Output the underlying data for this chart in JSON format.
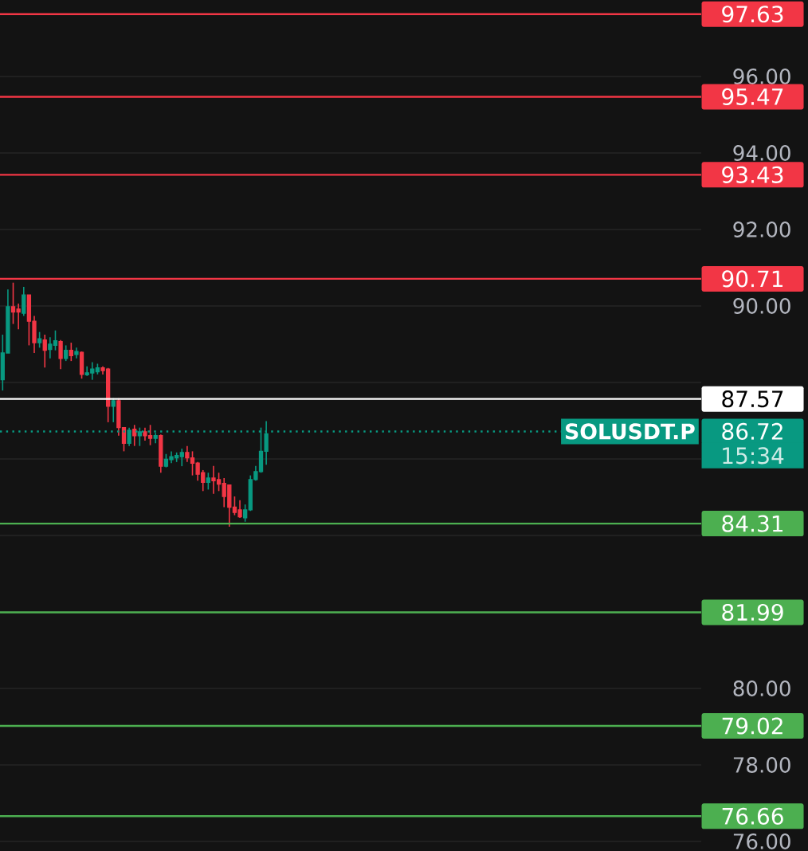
{
  "chart_data": {
    "type": "candlestick",
    "categories": [
      null,
      null,
      null,
      null,
      null,
      null,
      null,
      null,
      null,
      null,
      null,
      null,
      null,
      null,
      null,
      null,
      null,
      null,
      null,
      null,
      null,
      null,
      null,
      null,
      null,
      null,
      null,
      null,
      null,
      null,
      null,
      null,
      null,
      null,
      null,
      null,
      null,
      null,
      null,
      null,
      null,
      null,
      null,
      null,
      null,
      null,
      null,
      null,
      null,
      null,
      null,
      null,
      null,
      null,
      null,
      null,
      null,
      null,
      null,
      null,
      null,
      null,
      null,
      null,
      null,
      null,
      null,
      null,
      null,
      null,
      null,
      null,
      null,
      null,
      null,
      null,
      null,
      null,
      null,
      null,
      null,
      null,
      null,
      null,
      null,
      null,
      null,
      null,
      null,
      null,
      null,
      null,
      null,
      null,
      null,
      null,
      null,
      null,
      null,
      null,
      null,
      null,
      null,
      null,
      null,
      null,
      null,
      null,
      null,
      null,
      null,
      null,
      null,
      null,
      null,
      null,
      null,
      null,
      null,
      null,
      null,
      null,
      null,
      null,
      null,
      null,
      null,
      null,
      null,
      null,
      null,
      null,
      null
    ],
    "ohlc": [
      [
        88.07,
        89.25,
        87.79,
        88.77
      ],
      [
        88.77,
        90.43,
        88.77,
        89.98
      ],
      [
        89.98,
        90.61,
        89.53,
        89.84
      ],
      [
        89.92,
        90.06,
        89.39,
        89.84
      ],
      [
        89.81,
        90.5,
        89.74,
        90.29
      ],
      [
        90.29,
        90.29,
        88.97,
        89.6
      ],
      [
        89.6,
        89.74,
        88.77,
        89.04
      ],
      [
        89.04,
        89.32,
        88.91,
        89.14
      ],
      [
        89.11,
        89.25,
        88.39,
        88.84
      ],
      [
        88.86,
        89.18,
        88.63,
        89.0
      ],
      [
        88.97,
        89.36,
        88.84,
        89.09
      ],
      [
        89.07,
        89.11,
        88.35,
        88.63
      ],
      [
        88.63,
        88.97,
        88.56,
        88.84
      ],
      [
        88.84,
        89.04,
        88.56,
        88.7
      ],
      [
        88.73,
        88.91,
        88.63,
        88.81
      ],
      [
        88.79,
        88.81,
        88.1,
        88.21
      ],
      [
        88.2,
        88.42,
        88.17,
        88.25
      ],
      [
        88.25,
        88.53,
        88.07,
        88.35
      ],
      [
        88.28,
        88.49,
        88.21,
        88.38
      ],
      [
        88.38,
        88.42,
        88.21,
        88.31
      ],
      [
        88.35,
        88.38,
        86.96,
        87.38
      ],
      [
        87.38,
        87.59,
        86.96,
        87.52
      ],
      [
        87.52,
        87.59,
        86.61,
        86.82
      ],
      [
        86.82,
        86.82,
        86.2,
        86.41
      ],
      [
        86.41,
        86.82,
        86.34,
        86.75
      ],
      [
        86.78,
        86.89,
        86.34,
        86.61
      ],
      [
        86.61,
        86.82,
        86.34,
        86.71
      ],
      [
        86.71,
        86.82,
        86.48,
        86.61
      ],
      [
        86.61,
        86.89,
        86.36,
        86.54
      ],
      [
        86.54,
        86.68,
        86.41,
        86.61
      ],
      [
        86.61,
        86.64,
        85.64,
        85.81
      ],
      [
        85.81,
        86.13,
        85.78,
        85.99
      ],
      [
        85.98,
        86.2,
        85.89,
        86.06
      ],
      [
        86.03,
        86.17,
        85.92,
        86.09
      ],
      [
        86.06,
        86.27,
        85.81,
        86.17
      ],
      [
        86.17,
        86.34,
        85.92,
        86.03
      ],
      [
        86.03,
        86.2,
        85.57,
        85.89
      ],
      [
        85.89,
        85.92,
        85.43,
        85.6
      ],
      [
        85.64,
        85.71,
        85.16,
        85.39
      ],
      [
        85.39,
        85.64,
        85.2,
        85.5
      ],
      [
        85.5,
        85.82,
        85.09,
        85.43
      ],
      [
        85.46,
        85.64,
        85.16,
        85.34
      ],
      [
        85.36,
        85.5,
        84.74,
        85.02
      ],
      [
        85.32,
        85.32,
        84.23,
        84.74
      ],
      [
        84.74,
        85.02,
        84.53,
        84.6
      ],
      [
        84.67,
        84.92,
        84.46,
        84.49
      ],
      [
        84.46,
        84.81,
        84.36,
        84.67
      ],
      [
        84.67,
        85.57,
        84.64,
        85.46
      ],
      [
        85.46,
        85.82,
        85.43,
        85.67
      ],
      [
        85.67,
        86.82,
        85.64,
        86.2
      ],
      [
        86.2,
        86.99,
        85.85,
        86.66
      ],
      null,
      null,
      null,
      null,
      null,
      null,
      null,
      null,
      null,
      null,
      null,
      null,
      null,
      null,
      null,
      null,
      null,
      null,
      null,
      null,
      null,
      null,
      null,
      null,
      null,
      null,
      null,
      null,
      null,
      null,
      null,
      null,
      null,
      null,
      null,
      null,
      null,
      null,
      null,
      null,
      null,
      null,
      null,
      null,
      null,
      null,
      null,
      null,
      null,
      null,
      null,
      null,
      null,
      null,
      null,
      null,
      null,
      null,
      null,
      null,
      null,
      null,
      null,
      null,
      null,
      null,
      null,
      null,
      null,
      null,
      null,
      null,
      null,
      null,
      null,
      null,
      null,
      null,
      null,
      null,
      null,
      null
    ],
    "ylim": [
      75.75,
      98
    ],
    "yticks": [
      {
        "value": 76,
        "label": "76.00"
      },
      {
        "value": 78,
        "label": "78.00"
      },
      {
        "value": 80,
        "label": "80.00"
      },
      {
        "value": 82,
        "label": null
      },
      {
        "value": 84,
        "label": null
      },
      {
        "value": 86,
        "label": null
      },
      {
        "value": 88,
        "label": null
      },
      {
        "value": 90,
        "label": "90.00"
      },
      {
        "value": 92,
        "label": "92.00"
      },
      {
        "value": 94,
        "label": "94.00"
      },
      {
        "value": 96,
        "label": "96.00"
      }
    ],
    "tick_labels": "y",
    "grid": "y",
    "ref_lines": [
      {
        "axis": "y",
        "value": 97.63,
        "label": "97.63",
        "color": "#f23645"
      },
      {
        "axis": "y",
        "value": 95.47,
        "label": "95.47",
        "color": "#f23645"
      },
      {
        "axis": "y",
        "value": 93.43,
        "label": "93.43",
        "color": "#f23645"
      },
      {
        "axis": "y",
        "value": 90.71,
        "label": "90.71",
        "color": "#f23645"
      },
      {
        "axis": "y",
        "value": 87.57,
        "label": "87.57",
        "color": "#ffffff"
      },
      {
        "axis": "y",
        "value": 86.72,
        "label": "86.72",
        "color": "#089981",
        "line_style": "dotted"
      },
      {
        "axis": "y",
        "value": 84.31,
        "label": "84.31",
        "color": "#4caf50"
      },
      {
        "axis": "y",
        "value": 81.99,
        "label": "81.99",
        "color": "#4caf50"
      },
      {
        "axis": "y",
        "value": 79.02,
        "label": "79.02",
        "color": "#4caf50"
      },
      {
        "axis": "y",
        "value": 76.66,
        "label": "76.66",
        "color": "#4caf50"
      }
    ],
    "annotations": [
      "SOLUSDT.P",
      "15:34"
    ]
  }
}
